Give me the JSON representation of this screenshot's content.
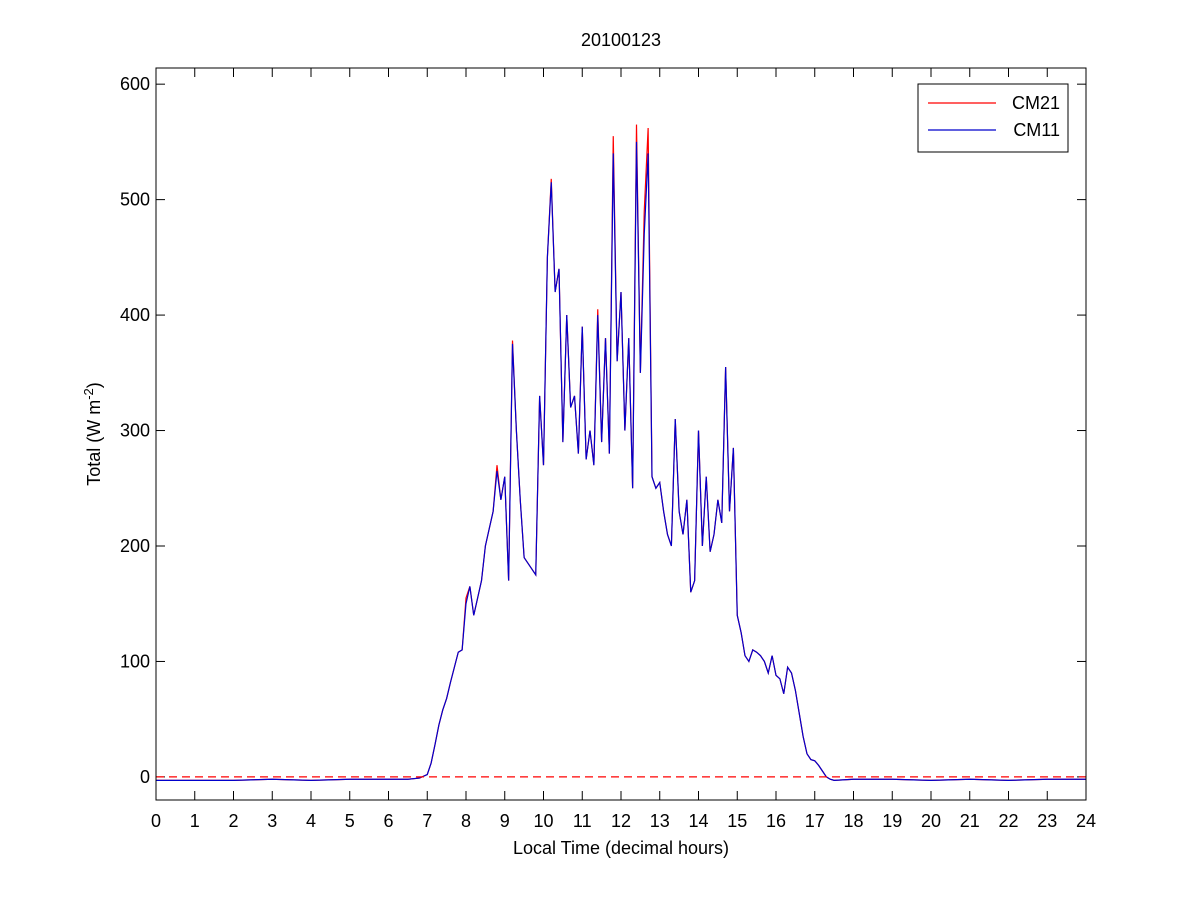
{
  "chart_data": {
    "type": "line",
    "title": "20100123",
    "xlabel": "Local Time (decimal hours)",
    "ylabel": {
      "text": "Total (W m",
      "superscript": "-2",
      "suffix": ")"
    },
    "x": [
      0,
      1,
      2,
      3,
      4,
      5,
      6,
      6.5,
      6.8,
      7,
      7.1,
      7.2,
      7.3,
      7.4,
      7.5,
      7.6,
      7.7,
      7.8,
      7.9,
      8,
      8.1,
      8.2,
      8.3,
      8.4,
      8.5,
      8.6,
      8.7,
      8.8,
      8.9,
      9,
      9.1,
      9.2,
      9.3,
      9.4,
      9.5,
      9.6,
      9.7,
      9.8,
      9.9,
      10,
      10.1,
      10.2,
      10.3,
      10.4,
      10.5,
      10.6,
      10.7,
      10.8,
      10.9,
      11,
      11.1,
      11.2,
      11.3,
      11.4,
      11.5,
      11.6,
      11.7,
      11.8,
      11.9,
      12,
      12.1,
      12.2,
      12.3,
      12.4,
      12.5,
      12.6,
      12.7,
      12.8,
      12.9,
      13,
      13.1,
      13.2,
      13.3,
      13.4,
      13.5,
      13.6,
      13.7,
      13.8,
      13.9,
      14,
      14.1,
      14.2,
      14.3,
      14.4,
      14.5,
      14.6,
      14.7,
      14.8,
      14.9,
      15,
      15.1,
      15.2,
      15.3,
      15.4,
      15.5,
      15.6,
      15.7,
      15.8,
      15.9,
      16,
      16.1,
      16.2,
      16.3,
      16.4,
      16.5,
      16.6,
      16.7,
      16.8,
      16.9,
      17,
      17.1,
      17.2,
      17.3,
      17.4,
      17.5,
      18,
      19,
      20,
      21,
      22,
      23,
      24
    ],
    "series": [
      {
        "name": "CM21",
        "color": "#ff0000",
        "values": [
          -3,
          -3,
          -3,
          -2,
          -3,
          -2,
          -2,
          -2,
          -1,
          2,
          12,
          28,
          45,
          58,
          68,
          82,
          95,
          108,
          110,
          155,
          165,
          140,
          155,
          170,
          200,
          215,
          230,
          270,
          240,
          260,
          170,
          378,
          300,
          240,
          190,
          185,
          180,
          175,
          330,
          270,
          450,
          518,
          420,
          440,
          290,
          400,
          320,
          330,
          280,
          390,
          275,
          300,
          270,
          405,
          290,
          380,
          280,
          555,
          360,
          420,
          300,
          380,
          250,
          565,
          350,
          490,
          562,
          260,
          250,
          255,
          230,
          210,
          200,
          310,
          230,
          210,
          240,
          160,
          170,
          300,
          200,
          260,
          195,
          210,
          240,
          220,
          355,
          230,
          285,
          140,
          125,
          105,
          100,
          110,
          108,
          105,
          100,
          90,
          105,
          88,
          85,
          72,
          95,
          90,
          75,
          55,
          35,
          20,
          15,
          14,
          10,
          5,
          0,
          -2,
          -3,
          -2,
          -2,
          -3,
          -2,
          -3,
          -2,
          -2
        ]
      },
      {
        "name": "CM11",
        "color": "#0000cc",
        "values": [
          -3,
          -3,
          -3,
          -2,
          -3,
          -2,
          -2,
          -2,
          -1,
          2,
          12,
          28,
          45,
          58,
          68,
          82,
          95,
          108,
          110,
          150,
          165,
          140,
          155,
          170,
          200,
          215,
          230,
          265,
          240,
          260,
          170,
          375,
          300,
          240,
          190,
          185,
          180,
          175,
          330,
          270,
          450,
          515,
          420,
          440,
          290,
          400,
          320,
          330,
          280,
          390,
          275,
          300,
          270,
          400,
          290,
          380,
          280,
          540,
          360,
          420,
          300,
          380,
          250,
          550,
          350,
          470,
          540,
          260,
          250,
          255,
          230,
          210,
          200,
          310,
          230,
          210,
          240,
          160,
          170,
          300,
          200,
          260,
          195,
          210,
          240,
          220,
          355,
          230,
          285,
          140,
          125,
          105,
          100,
          110,
          108,
          105,
          100,
          90,
          105,
          88,
          85,
          72,
          95,
          90,
          75,
          55,
          35,
          20,
          15,
          14,
          10,
          5,
          0,
          -2,
          -3,
          -2,
          -2,
          -3,
          -2,
          -3,
          -2,
          -2
        ]
      }
    ],
    "xlim": [
      0,
      24
    ],
    "xticks": [
      0,
      1,
      2,
      3,
      4,
      5,
      6,
      7,
      8,
      9,
      10,
      11,
      12,
      13,
      14,
      15,
      16,
      17,
      18,
      19,
      20,
      21,
      22,
      23,
      24
    ],
    "ylim": [
      -20,
      614
    ],
    "yticks": [
      0,
      100,
      200,
      300,
      400,
      500,
      600
    ],
    "reference_line": {
      "value": 0,
      "color": "#ff0000",
      "style": "dashed"
    },
    "legend": "northeast",
    "grid": false
  }
}
